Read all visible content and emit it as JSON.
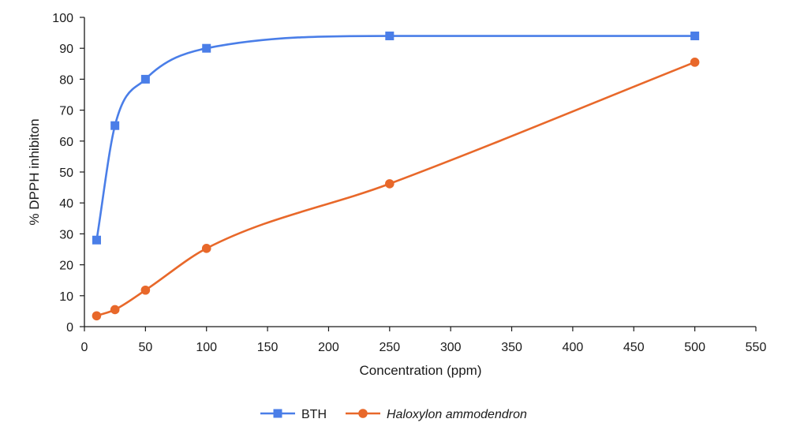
{
  "chart_data": {
    "type": "line",
    "xlabel": "Concentration (ppm)",
    "ylabel": "% DPPH inhibiton",
    "xlim": [
      0,
      550
    ],
    "ylim": [
      0,
      100
    ],
    "x_ticks": [
      "0",
      "50",
      "100",
      "150",
      "200",
      "250",
      "300",
      "350",
      "400",
      "450",
      "500",
      "550"
    ],
    "y_ticks": [
      "0",
      "10",
      "20",
      "30",
      "40",
      "50",
      "60",
      "70",
      "80",
      "90",
      "100"
    ],
    "grid": false,
    "legend_position": "bottom",
    "series": [
      {
        "name": "BTH",
        "color": "#4a7ee8",
        "marker": "square",
        "legend_italic": false,
        "smooth": true,
        "x": [
          10,
          25,
          50,
          100,
          250,
          500
        ],
        "y": [
          28,
          65,
          80,
          90,
          94,
          94
        ]
      },
      {
        "name": "Haloxylon ammodendron",
        "color": "#e8682a",
        "marker": "circle",
        "legend_italic": true,
        "smooth": true,
        "x": [
          10,
          25,
          50,
          100,
          250,
          500
        ],
        "y": [
          3.5,
          5.5,
          11.8,
          25.3,
          46.2,
          85.5
        ]
      }
    ]
  }
}
